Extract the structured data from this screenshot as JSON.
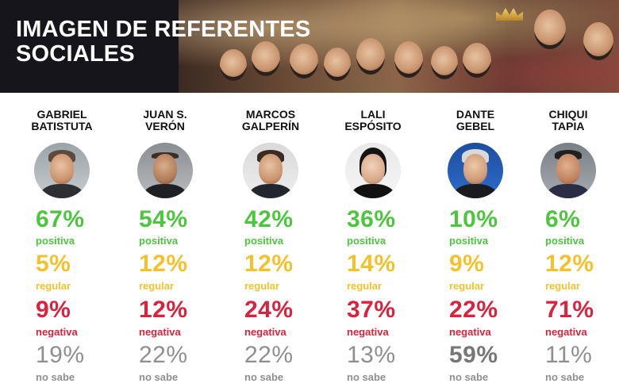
{
  "header": {
    "title": "IMAGEN DE REFERENTES\nSOCIALES"
  },
  "labels": {
    "positive": "positiva",
    "regular": "regular",
    "negative": "negativa",
    "unknown": "no sabe"
  },
  "colors": {
    "positive": "#4ec53f",
    "regular": "#f2c22c",
    "negative": "#d8233e",
    "unknown": "#8f8f8f",
    "header_bg": "#15151b"
  },
  "people": [
    {
      "name": "GABRIEL\nBATISTUTA",
      "avatar_icon": "person-photo-icon",
      "positive": "67%",
      "regular": "5%",
      "negative": "9%",
      "unknown": "19%"
    },
    {
      "name": "JUAN S.\nVERÓN",
      "avatar_icon": "person-photo-icon",
      "positive": "54%",
      "regular": "12%",
      "negative": "12%",
      "unknown": "22%"
    },
    {
      "name": "MARCOS\nGALPERÍN",
      "avatar_icon": "person-photo-icon",
      "positive": "42%",
      "regular": "12%",
      "negative": "24%",
      "unknown": "22%"
    },
    {
      "name": "LALI\nESPÓSITO",
      "avatar_icon": "person-photo-icon",
      "positive": "36%",
      "regular": "14%",
      "negative": "37%",
      "unknown": "13%"
    },
    {
      "name": "DANTE\nGEBEL",
      "avatar_icon": "person-photo-icon",
      "positive": "10%",
      "regular": "9%",
      "negative": "22%",
      "unknown": "59%"
    },
    {
      "name": "CHIQUI\nTAPIA",
      "avatar_icon": "person-photo-icon",
      "positive": "6%",
      "regular": "12%",
      "negative": "71%",
      "unknown": "11%"
    }
  ]
}
